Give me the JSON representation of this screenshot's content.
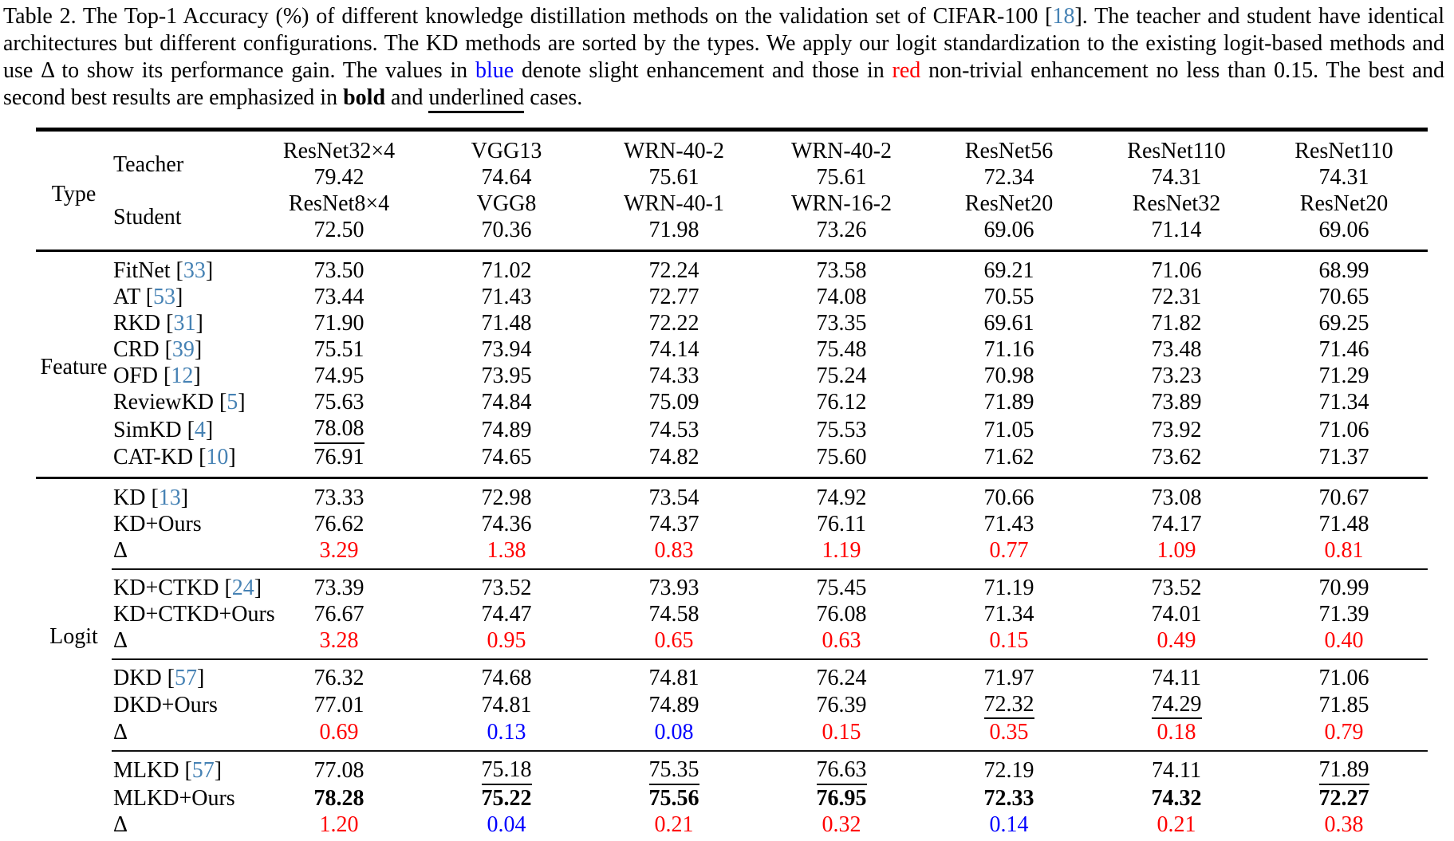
{
  "colors": {
    "citation_link": "#4682b4",
    "gain_small_blue": "#0000ff",
    "gain_large_red": "#ff0000"
  },
  "caption": {
    "segments": [
      {
        "t": "Table 2.  The Top-1 Accuracy (%) of different knowledge distillation methods on the validation set of CIFAR-100 [",
        "s": ""
      },
      {
        "t": "18",
        "s": "cite"
      },
      {
        "t": "].  The teacher and student have identical architectures but different configurations. The KD methods are sorted by the types. We apply our logit standardization to the existing logit-based methods and use Δ to show its performance gain. The values in ",
        "s": ""
      },
      {
        "t": "blue",
        "s": "blue"
      },
      {
        "t": " denote slight enhancement and those in ",
        "s": ""
      },
      {
        "t": "red",
        "s": "red"
      },
      {
        "t": " non-trivial enhancement no less than 0.15. The best and second best results are emphasized in ",
        "s": ""
      },
      {
        "t": "bold",
        "s": "bold"
      },
      {
        "t": " and ",
        "s": ""
      },
      {
        "t": "underlined",
        "s": "underline"
      },
      {
        "t": " cases.",
        "s": ""
      }
    ]
  },
  "table": {
    "header": {
      "type_label": "Type",
      "teacher_label": "Teacher",
      "student_label": "Student",
      "columns": [
        {
          "teacher": "ResNet32×4",
          "teacher_acc": "79.42",
          "student": "ResNet8×4",
          "student_acc": "72.50"
        },
        {
          "teacher": "VGG13",
          "teacher_acc": "74.64",
          "student": "VGG8",
          "student_acc": "70.36"
        },
        {
          "teacher": "WRN-40-2",
          "teacher_acc": "75.61",
          "student": "WRN-40-1",
          "student_acc": "71.98"
        },
        {
          "teacher": "WRN-40-2",
          "teacher_acc": "75.61",
          "student": "WRN-16-2",
          "student_acc": "73.26"
        },
        {
          "teacher": "ResNet56",
          "teacher_acc": "72.34",
          "student": "ResNet20",
          "student_acc": "69.06"
        },
        {
          "teacher": "ResNet110",
          "teacher_acc": "74.31",
          "student": "ResNet32",
          "student_acc": "71.14"
        },
        {
          "teacher": "ResNet110",
          "teacher_acc": "74.31",
          "student": "ResNet20",
          "student_acc": "69.06"
        }
      ]
    },
    "sections": [
      {
        "label": "Feature",
        "blocks": [
          {
            "rows": [
              {
                "pre": "FitNet [",
                "cite": "33",
                "post": "]",
                "cells": [
                  {
                    "t": "73.50"
                  },
                  {
                    "t": "71.02"
                  },
                  {
                    "t": "72.24"
                  },
                  {
                    "t": "73.58"
                  },
                  {
                    "t": "69.21"
                  },
                  {
                    "t": "71.06"
                  },
                  {
                    "t": "68.99"
                  }
                ]
              },
              {
                "pre": "AT [",
                "cite": "53",
                "post": "]",
                "cells": [
                  {
                    "t": "73.44"
                  },
                  {
                    "t": "71.43"
                  },
                  {
                    "t": "72.77"
                  },
                  {
                    "t": "74.08"
                  },
                  {
                    "t": "70.55"
                  },
                  {
                    "t": "72.31"
                  },
                  {
                    "t": "70.65"
                  }
                ]
              },
              {
                "pre": "RKD [",
                "cite": "31",
                "post": "]",
                "cells": [
                  {
                    "t": "71.90"
                  },
                  {
                    "t": "71.48"
                  },
                  {
                    "t": "72.22"
                  },
                  {
                    "t": "73.35"
                  },
                  {
                    "t": "69.61"
                  },
                  {
                    "t": "71.82"
                  },
                  {
                    "t": "69.25"
                  }
                ]
              },
              {
                "pre": "CRD [",
                "cite": "39",
                "post": "]",
                "cells": [
                  {
                    "t": "75.51"
                  },
                  {
                    "t": "73.94"
                  },
                  {
                    "t": "74.14"
                  },
                  {
                    "t": "75.48"
                  },
                  {
                    "t": "71.16"
                  },
                  {
                    "t": "73.48"
                  },
                  {
                    "t": "71.46"
                  }
                ]
              },
              {
                "pre": "OFD [",
                "cite": "12",
                "post": "]",
                "cells": [
                  {
                    "t": "74.95"
                  },
                  {
                    "t": "73.95"
                  },
                  {
                    "t": "74.33"
                  },
                  {
                    "t": "75.24"
                  },
                  {
                    "t": "70.98"
                  },
                  {
                    "t": "73.23"
                  },
                  {
                    "t": "71.29"
                  }
                ]
              },
              {
                "pre": "ReviewKD [",
                "cite": "5",
                "post": "]",
                "cells": [
                  {
                    "t": "75.63"
                  },
                  {
                    "t": "74.84"
                  },
                  {
                    "t": "75.09"
                  },
                  {
                    "t": "76.12"
                  },
                  {
                    "t": "71.89"
                  },
                  {
                    "t": "73.89"
                  },
                  {
                    "t": "71.34"
                  }
                ]
              },
              {
                "pre": "SimKD [",
                "cite": "4",
                "post": "]",
                "cells": [
                  {
                    "t": "78.08",
                    "s": "underline"
                  },
                  {
                    "t": "74.89"
                  },
                  {
                    "t": "74.53"
                  },
                  {
                    "t": "75.53"
                  },
                  {
                    "t": "71.05"
                  },
                  {
                    "t": "73.92"
                  },
                  {
                    "t": "71.06"
                  }
                ]
              },
              {
                "pre": "CAT-KD [",
                "cite": "10",
                "post": "]",
                "cells": [
                  {
                    "t": "76.91"
                  },
                  {
                    "t": "74.65"
                  },
                  {
                    "t": "74.82"
                  },
                  {
                    "t": "75.60"
                  },
                  {
                    "t": "71.62"
                  },
                  {
                    "t": "73.62"
                  },
                  {
                    "t": "71.37"
                  }
                ]
              }
            ]
          }
        ]
      },
      {
        "label": "Logit",
        "blocks": [
          {
            "rows": [
              {
                "pre": "KD [",
                "cite": "13",
                "post": "]",
                "cells": [
                  {
                    "t": "73.33"
                  },
                  {
                    "t": "72.98"
                  },
                  {
                    "t": "73.54"
                  },
                  {
                    "t": "74.92"
                  },
                  {
                    "t": "70.66"
                  },
                  {
                    "t": "73.08"
                  },
                  {
                    "t": "70.67"
                  }
                ]
              },
              {
                "pre": "KD+Ours",
                "cells": [
                  {
                    "t": "76.62"
                  },
                  {
                    "t": "74.36"
                  },
                  {
                    "t": "74.37"
                  },
                  {
                    "t": "76.11"
                  },
                  {
                    "t": "71.43"
                  },
                  {
                    "t": "74.17"
                  },
                  {
                    "t": "71.48"
                  }
                ]
              },
              {
                "pre": "Δ",
                "cells": [
                  {
                    "t": "3.29",
                    "s": "red"
                  },
                  {
                    "t": "1.38",
                    "s": "red"
                  },
                  {
                    "t": "0.83",
                    "s": "red"
                  },
                  {
                    "t": "1.19",
                    "s": "red"
                  },
                  {
                    "t": "0.77",
                    "s": "red"
                  },
                  {
                    "t": "1.09",
                    "s": "red"
                  },
                  {
                    "t": "0.81",
                    "s": "red"
                  }
                ]
              }
            ]
          },
          {
            "rows": [
              {
                "pre": "KD+CTKD [",
                "cite": "24",
                "post": "]",
                "cells": [
                  {
                    "t": "73.39"
                  },
                  {
                    "t": "73.52"
                  },
                  {
                    "t": "73.93"
                  },
                  {
                    "t": "75.45"
                  },
                  {
                    "t": "71.19"
                  },
                  {
                    "t": "73.52"
                  },
                  {
                    "t": "70.99"
                  }
                ]
              },
              {
                "pre": "KD+CTKD+Ours",
                "cells": [
                  {
                    "t": "76.67"
                  },
                  {
                    "t": "74.47"
                  },
                  {
                    "t": "74.58"
                  },
                  {
                    "t": "76.08"
                  },
                  {
                    "t": "71.34"
                  },
                  {
                    "t": "74.01"
                  },
                  {
                    "t": "71.39"
                  }
                ]
              },
              {
                "pre": "Δ",
                "cells": [
                  {
                    "t": "3.28",
                    "s": "red"
                  },
                  {
                    "t": "0.95",
                    "s": "red"
                  },
                  {
                    "t": "0.65",
                    "s": "red"
                  },
                  {
                    "t": "0.63",
                    "s": "red"
                  },
                  {
                    "t": "0.15",
                    "s": "red"
                  },
                  {
                    "t": "0.49",
                    "s": "red"
                  },
                  {
                    "t": "0.40",
                    "s": "red"
                  }
                ]
              }
            ]
          },
          {
            "rows": [
              {
                "pre": "DKD [",
                "cite": "57",
                "post": "]",
                "cells": [
                  {
                    "t": "76.32"
                  },
                  {
                    "t": "74.68"
                  },
                  {
                    "t": "74.81"
                  },
                  {
                    "t": "76.24"
                  },
                  {
                    "t": "71.97"
                  },
                  {
                    "t": "74.11"
                  },
                  {
                    "t": "71.06"
                  }
                ]
              },
              {
                "pre": "DKD+Ours",
                "cells": [
                  {
                    "t": "77.01"
                  },
                  {
                    "t": "74.81"
                  },
                  {
                    "t": "74.89"
                  },
                  {
                    "t": "76.39"
                  },
                  {
                    "t": "72.32",
                    "s": "underline"
                  },
                  {
                    "t": "74.29",
                    "s": "underline"
                  },
                  {
                    "t": "71.85"
                  }
                ]
              },
              {
                "pre": "Δ",
                "cells": [
                  {
                    "t": "0.69",
                    "s": "red"
                  },
                  {
                    "t": "0.13",
                    "s": "blue"
                  },
                  {
                    "t": "0.08",
                    "s": "blue"
                  },
                  {
                    "t": "0.15",
                    "s": "red"
                  },
                  {
                    "t": "0.35",
                    "s": "red"
                  },
                  {
                    "t": "0.18",
                    "s": "red"
                  },
                  {
                    "t": "0.79",
                    "s": "red"
                  }
                ]
              }
            ]
          },
          {
            "rows": [
              {
                "pre": "MLKD [",
                "cite": "57",
                "post": "]",
                "cells": [
                  {
                    "t": "77.08"
                  },
                  {
                    "t": "75.18",
                    "s": "underline"
                  },
                  {
                    "t": "75.35",
                    "s": "underline"
                  },
                  {
                    "t": "76.63",
                    "s": "underline"
                  },
                  {
                    "t": "72.19"
                  },
                  {
                    "t": "74.11"
                  },
                  {
                    "t": "71.89",
                    "s": "underline"
                  }
                ]
              },
              {
                "pre": "MLKD+Ours",
                "cells": [
                  {
                    "t": "78.28",
                    "s": "bold"
                  },
                  {
                    "t": "75.22",
                    "s": "bold"
                  },
                  {
                    "t": "75.56",
                    "s": "bold"
                  },
                  {
                    "t": "76.95",
                    "s": "bold"
                  },
                  {
                    "t": "72.33",
                    "s": "bold"
                  },
                  {
                    "t": "74.32",
                    "s": "bold"
                  },
                  {
                    "t": "72.27",
                    "s": "bold"
                  }
                ]
              },
              {
                "pre": "Δ",
                "cells": [
                  {
                    "t": "1.20",
                    "s": "red"
                  },
                  {
                    "t": "0.04",
                    "s": "blue"
                  },
                  {
                    "t": "0.21",
                    "s": "red"
                  },
                  {
                    "t": "0.32",
                    "s": "red"
                  },
                  {
                    "t": "0.14",
                    "s": "blue"
                  },
                  {
                    "t": "0.21",
                    "s": "red"
                  },
                  {
                    "t": "0.38",
                    "s": "red"
                  }
                ]
              }
            ]
          }
        ]
      }
    ]
  }
}
